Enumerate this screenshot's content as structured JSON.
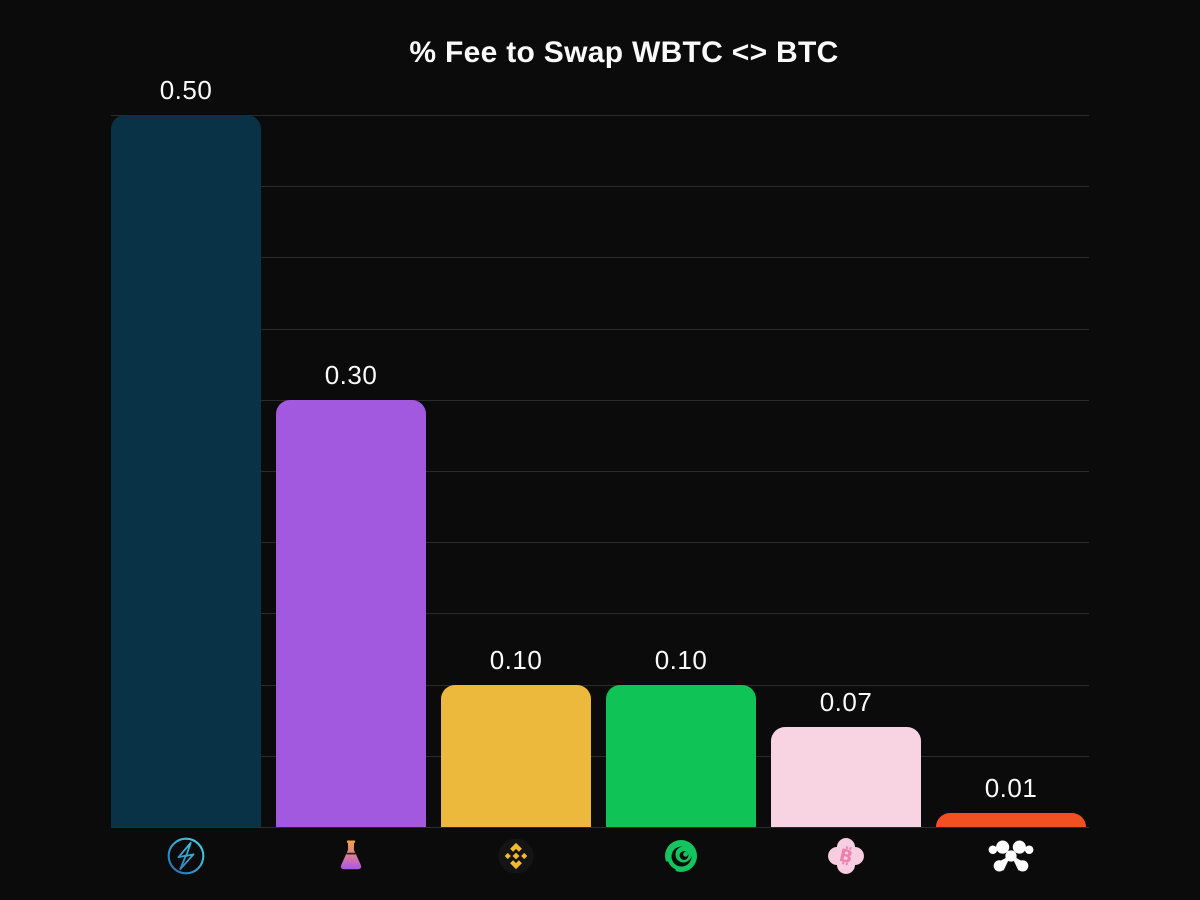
{
  "title": "% Fee to Swap WBTC <> BTC",
  "colors": {
    "background": "#0b0b0c",
    "gridline": "#2b2b2b",
    "label_text": "#fafafa"
  },
  "chart_data": {
    "type": "bar",
    "title": "% Fee to Swap WBTC <> BTC",
    "xlabel": "",
    "ylabel": "",
    "ylim": [
      0,
      0.5
    ],
    "gridline_step": 0.05,
    "grid": true,
    "legend": "none",
    "y_tick_labels_visible": false,
    "x_axis_style": "provider logos (icons, no text)",
    "categories": [
      "lightning-circle",
      "potion-flask",
      "binance",
      "green-vortex",
      "pink-bitcoin-flower",
      "white-molecule"
    ],
    "values": [
      0.5,
      0.3,
      0.1,
      0.1,
      0.07,
      0.01
    ],
    "bars": [
      {
        "icon": "lightning-circle-icon",
        "label": "0.50",
        "value": 0.5,
        "color": "#0a3247"
      },
      {
        "icon": "potion-flask-icon",
        "label": "0.30",
        "value": 0.3,
        "color": "#a358e0"
      },
      {
        "icon": "binance-icon",
        "label": "0.10",
        "value": 0.1,
        "color": "#ecb93d"
      },
      {
        "icon": "green-vortex-icon",
        "label": "0.10",
        "value": 0.1,
        "color": "#10c356"
      },
      {
        "icon": "pink-bitcoin-flower-icon",
        "label": "0.07",
        "value": 0.07,
        "color": "#f8d3e2"
      },
      {
        "icon": "white-molecule-icon",
        "label": "0.01",
        "value": 0.01,
        "color": "#f25023"
      }
    ]
  }
}
